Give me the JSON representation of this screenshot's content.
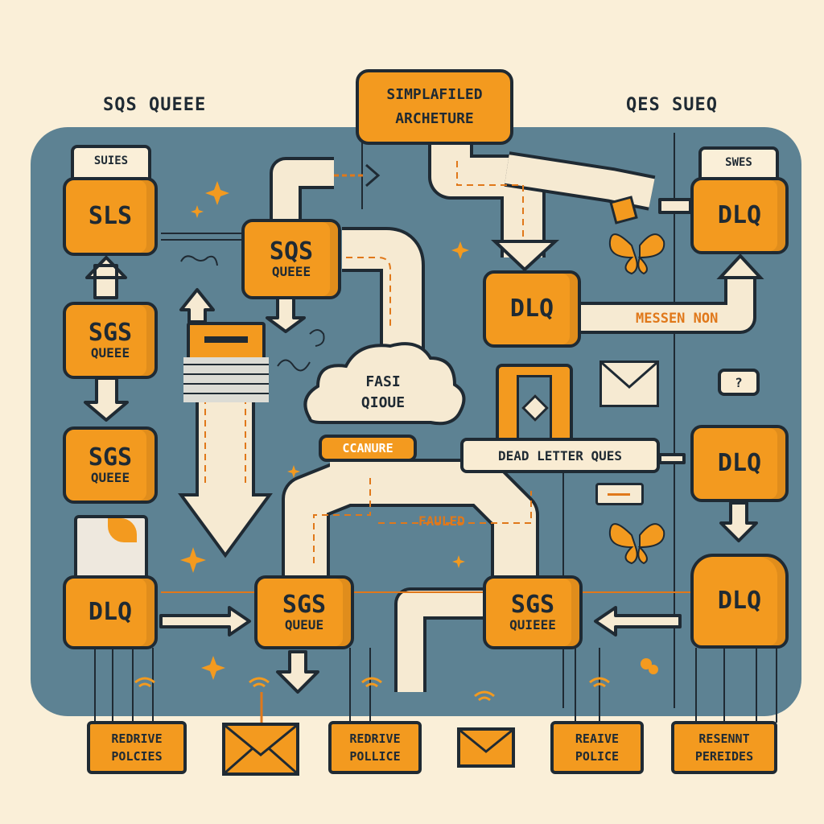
{
  "headings": {
    "left": "SQS QUEEE",
    "right": "QES SUEQ"
  },
  "title": {
    "line1": "SIMPLAFILED",
    "line2": "ARCHETURE"
  },
  "nodes": {
    "top_left": "SLS",
    "top_left_tab": "SUIES",
    "left_mid_1": {
      "line1": "SGS",
      "line2": "QUEEE"
    },
    "left_mid_2": {
      "line1": "SGS",
      "line2": "QUEEE"
    },
    "left_bottom": "DLQ",
    "center_top": {
      "line1": "SQS",
      "line2": "QUEEE"
    },
    "center_dlq": "DLQ",
    "top_right": "DLQ",
    "top_right_tab": "SWES",
    "right_mid": "DLQ",
    "right_bottom": "DLQ",
    "bottom_center_left": {
      "line1": "SGS",
      "line2": "QUEUE"
    },
    "bottom_center_right": {
      "line1": "SGS",
      "line2": "QUIEEE"
    }
  },
  "cloud": {
    "line1": "FASI",
    "line2": "QIOUE"
  },
  "labels": {
    "ccanure": "CCANURE",
    "dead_letter": "DEAD LETTER QUES",
    "messen": "MESSEN NON",
    "fauled": "FAULED",
    "question": "?"
  },
  "bottom_boxes": [
    {
      "line1": "REDRIVE",
      "line2": "POLCIES"
    },
    {
      "line1": "REDRIVE",
      "line2": "POLLICE"
    },
    {
      "line1": "REAIVE",
      "line2": "POLICE"
    },
    {
      "line1": "RESENNT",
      "line2": "PEREIDES"
    }
  ],
  "icons": [
    "envelope-icon",
    "envelope-icon",
    "wifi-icon",
    "butterfly-icon",
    "sparkle-icon",
    "server-icon",
    "phone-icon",
    "cloud-icon"
  ],
  "colors": {
    "background": "#faefd8",
    "board": "#5d8293",
    "accent": "#f39a1f",
    "ink": "#1f2a33",
    "path": "#f6ead2"
  }
}
